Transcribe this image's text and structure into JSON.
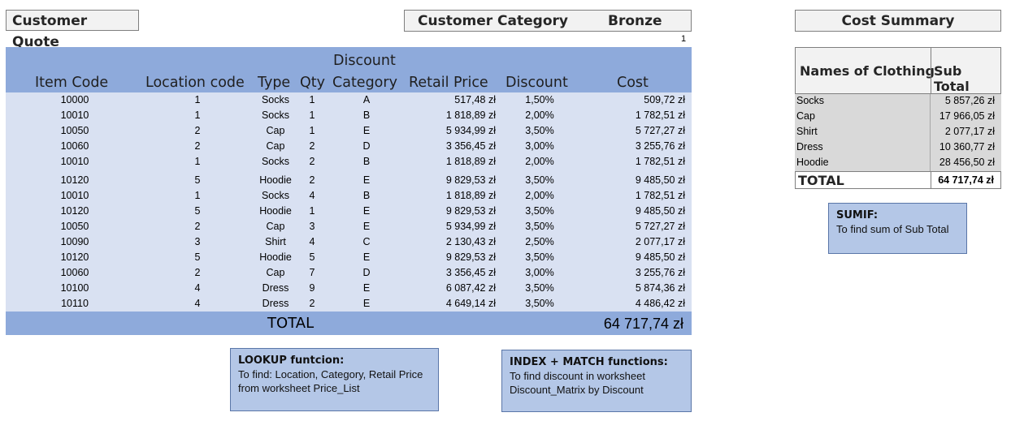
{
  "header": {
    "quote_title": "Customer Quote",
    "category_label": "Customer Category",
    "category_value": "Bronze",
    "page_number": "1"
  },
  "table": {
    "columns": {
      "item_code": "Item Code",
      "location_code": "Location code",
      "type": "Type",
      "qty": "Qty",
      "discount_category_line1": "Discount",
      "discount_category_line2": "Category",
      "retail_price": "Retail Price",
      "discount": "Discount",
      "cost": "Cost"
    },
    "rows": [
      {
        "item": "10000",
        "loc": "1",
        "type": "Socks",
        "qty": "1",
        "cat": "A",
        "retail": "517,48 zł",
        "disc": "1,50%",
        "cost": "509,72 zł"
      },
      {
        "item": "10010",
        "loc": "1",
        "type": "Socks",
        "qty": "1",
        "cat": "B",
        "retail": "1 818,89 zł",
        "disc": "2,00%",
        "cost": "1 782,51 zł"
      },
      {
        "item": "10050",
        "loc": "2",
        "type": "Cap",
        "qty": "1",
        "cat": "E",
        "retail": "5 934,99 zł",
        "disc": "3,50%",
        "cost": "5 727,27 zł"
      },
      {
        "item": "10060",
        "loc": "2",
        "type": "Cap",
        "qty": "2",
        "cat": "D",
        "retail": "3 356,45 zł",
        "disc": "3,00%",
        "cost": "3 255,76 zł"
      },
      {
        "item": "10010",
        "loc": "1",
        "type": "Socks",
        "qty": "2",
        "cat": "B",
        "retail": "1 818,89 zł",
        "disc": "2,00%",
        "cost": "1 782,51 zł"
      },
      {
        "item": "10120",
        "loc": "5",
        "type": "Hoodie",
        "qty": "2",
        "cat": "E",
        "retail": "9 829,53 zł",
        "disc": "3,50%",
        "cost": "9 485,50 zł"
      },
      {
        "item": "10010",
        "loc": "1",
        "type": "Socks",
        "qty": "4",
        "cat": "B",
        "retail": "1 818,89 zł",
        "disc": "2,00%",
        "cost": "1 782,51 zł"
      },
      {
        "item": "10120",
        "loc": "5",
        "type": "Hoodie",
        "qty": "1",
        "cat": "E",
        "retail": "9 829,53 zł",
        "disc": "3,50%",
        "cost": "9 485,50 zł"
      },
      {
        "item": "10050",
        "loc": "2",
        "type": "Cap",
        "qty": "3",
        "cat": "E",
        "retail": "5 934,99 zł",
        "disc": "3,50%",
        "cost": "5 727,27 zł"
      },
      {
        "item": "10090",
        "loc": "3",
        "type": "Shirt",
        "qty": "4",
        "cat": "C",
        "retail": "2 130,43 zł",
        "disc": "2,50%",
        "cost": "2 077,17 zł"
      },
      {
        "item": "10120",
        "loc": "5",
        "type": "Hoodie",
        "qty": "5",
        "cat": "E",
        "retail": "9 829,53 zł",
        "disc": "3,50%",
        "cost": "9 485,50 zł"
      },
      {
        "item": "10060",
        "loc": "2",
        "type": "Cap",
        "qty": "7",
        "cat": "D",
        "retail": "3 356,45 zł",
        "disc": "3,00%",
        "cost": "3 255,76 zł"
      },
      {
        "item": "10100",
        "loc": "4",
        "type": "Dress",
        "qty": "9",
        "cat": "E",
        "retail": "6 087,42 zł",
        "disc": "3,50%",
        "cost": "5 874,36 zł"
      },
      {
        "item": "10110",
        "loc": "4",
        "type": "Dress",
        "qty": "2",
        "cat": "E",
        "retail": "4 649,14 zł",
        "disc": "3,50%",
        "cost": "4 486,42 zł"
      }
    ],
    "total_label": "TOTAL",
    "total_value": "64 717,74 zł"
  },
  "summary": {
    "title": "Cost Summary",
    "col_names": "Names of Clothing",
    "col_subtotal": "Sub Total",
    "rows": [
      {
        "name": "Socks",
        "value": "5 857,26 zł"
      },
      {
        "name": "Cap",
        "value": "17 966,05 zł"
      },
      {
        "name": "Shirt",
        "value": "2 077,17 zł"
      },
      {
        "name": "Dress",
        "value": "10 360,77 zł"
      },
      {
        "name": "Hoodie",
        "value": "28 456,50 zł"
      }
    ],
    "total_label": "TOTAL",
    "total_value": "64 717,74 zł"
  },
  "notes": {
    "lookup": {
      "title": "LOOKUP funtcion:",
      "line1": "To find: Location, Category, Retail Price",
      "line2": "from worksheet Price_List"
    },
    "index_match": {
      "title": "INDEX + MATCH functions:",
      "line1": "To find discount in worksheet",
      "line2": "Discount_Matrix by Discount"
    },
    "sumif": {
      "title": "SUMIF:",
      "line1": "To find sum of Sub Total"
    }
  }
}
